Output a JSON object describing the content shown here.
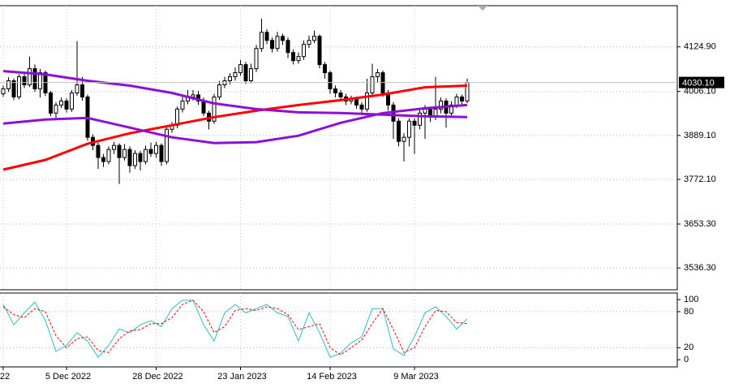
{
  "chart_data": [
    {
      "type": "candlestick",
      "categories": [
        "22",
        null,
        null,
        null,
        null,
        null,
        null,
        null,
        null,
        null,
        null,
        null,
        "5 Dec 2022",
        null,
        null,
        null,
        null,
        null,
        null,
        null,
        null,
        null,
        null,
        null,
        null,
        null,
        null,
        null,
        null,
        "28 Dec 2022",
        null,
        null,
        null,
        null,
        null,
        null,
        null,
        null,
        null,
        null,
        null,
        null,
        null,
        null,
        null,
        "23 Jan 2023",
        null,
        null,
        null,
        null,
        null,
        null,
        null,
        null,
        null,
        null,
        null,
        null,
        null,
        null,
        null,
        null,
        "14 Feb 2023",
        null,
        null,
        null,
        null,
        null,
        null,
        null,
        null,
        null,
        null,
        null,
        null,
        null,
        null,
        null,
        "9 Mar 2023",
        null,
        null,
        null,
        null,
        null,
        null,
        null,
        null,
        null,
        null
      ],
      "open": [
        4000,
        4013.1,
        4034.6,
        3991.6,
        4045.3,
        4023.8,
        4066.8,
        4013.1,
        4056.1,
        4002.3,
        3948.6,
        3970.1,
        3980.8,
        3959.3,
        4002.3,
        4023.8,
        3991.6,
        3884.1,
        3862.6,
        3830.3,
        3819.6,
        3851.8,
        3862.6,
        3830.3,
        3851.8,
        3808.8,
        3841.1,
        3819.6,
        3851.8,
        3841.1,
        3862.6,
        3819.6,
        3905.6,
        3916.3,
        3959.3,
        3980.8,
        3991.6,
        3997.0,
        3980.8,
        3948.6,
        3927.1,
        3991.6,
        4023.8,
        4034.6,
        4045.3,
        4056.1,
        4077.6,
        4034.6,
        4066.8,
        4120.6,
        4163.6,
        4142.1,
        4120.6,
        4152.9,
        4142.1,
        4109.8,
        4088.3,
        4099.1,
        4131.4,
        4142.1,
        4152.9,
        4077.6,
        4056.1,
        4013.1,
        4002.3,
        3991.6,
        3980.8,
        3985.2,
        3970.1,
        3959.3,
        4002.3,
        4045.3,
        4056.1,
        4002.3,
        3970.1,
        3927.1,
        3873.3,
        3884.1,
        3927.1,
        3916.3,
        3948.6,
        3959.3,
        3937.8,
        3959.3,
        3980.8,
        3948.6,
        3970.1,
        3991.6,
        3980.8
      ],
      "high": [
        4022,
        4044,
        4041,
        4052,
        4055,
        4099,
        4078,
        4066,
        4062,
        4008,
        3978,
        3990,
        3988,
        4010,
        4140,
        4045,
        3998,
        3892,
        3870,
        3840,
        3860,
        3872,
        3868,
        3866,
        3860,
        3850,
        3848,
        3862,
        3870,
        3872,
        3868,
        3912,
        3925,
        3966,
        3992,
        4010,
        4010,
        4008,
        3990,
        3955,
        4000,
        4034,
        4045,
        4055,
        4070,
        4090,
        4085,
        4080,
        4130,
        4200,
        4172,
        4150,
        4165,
        4160,
        4150,
        4118,
        4110,
        4142,
        4155,
        4168,
        4158,
        4085,
        4062,
        4022,
        4010,
        4000,
        3995,
        3992,
        3978,
        4040,
        4080,
        4066,
        4062,
        4010,
        3978,
        3935,
        3895,
        3935,
        3935,
        3960,
        3970,
        3966,
        4045,
        3990,
        3988,
        3980,
        4000,
        3998,
        4040
      ],
      "low": [
        3992,
        4005,
        3983,
        3985,
        4015,
        4018,
        4005,
        3990,
        3994,
        3940,
        3935,
        3962,
        3950,
        3952,
        3995,
        3982,
        3875,
        3850,
        3800,
        3805,
        3812,
        3840,
        3760,
        3822,
        3790,
        3800,
        3796,
        3812,
        3832,
        3830,
        3808,
        3812,
        3896,
        3908,
        3950,
        3972,
        3982,
        3970,
        3940,
        3905,
        3920,
        3984,
        4015,
        4025,
        4035,
        4048,
        4026,
        4028,
        4058,
        4112,
        4132,
        4110,
        4112,
        4130,
        4095,
        4078,
        4080,
        4090,
        4122,
        4135,
        4068,
        4040,
        4000,
        3990,
        3980,
        3970,
        3972,
        3960,
        3945,
        3952,
        3995,
        4030,
        3992,
        3955,
        3880,
        3860,
        3820,
        3860,
        3840,
        3905,
        3880,
        3925,
        3930,
        3948,
        3910,
        3940,
        3962,
        3970,
        3975
      ],
      "close": [
        4013.1,
        4034.6,
        3991.6,
        4045.3,
        4023.8,
        4066.8,
        4013.1,
        4056.1,
        4002.3,
        3948.6,
        3970.1,
        3980.8,
        3959.3,
        4002.3,
        4023.8,
        3991.6,
        3884.1,
        3862.6,
        3830.3,
        3819.6,
        3851.8,
        3862.6,
        3830.3,
        3851.8,
        3808.8,
        3841.1,
        3819.6,
        3851.8,
        3841.1,
        3862.6,
        3819.6,
        3905.6,
        3916.3,
        3959.3,
        3980.8,
        3991.6,
        3997.0,
        3980.8,
        3948.6,
        3927.1,
        3991.6,
        4023.8,
        4034.6,
        4045.3,
        4056.1,
        4077.6,
        4034.6,
        4066.8,
        4120.6,
        4163.6,
        4142.1,
        4120.6,
        4152.9,
        4142.1,
        4109.8,
        4088.3,
        4099.1,
        4131.4,
        4142.1,
        4152.9,
        4077.6,
        4056.1,
        4013.1,
        4002.3,
        3991.6,
        3980.8,
        3985.2,
        3970.1,
        3959.3,
        4002.3,
        4045.3,
        4056.1,
        4002.3,
        3970.1,
        3927.1,
        3873.3,
        3884.1,
        3927.1,
        3916.3,
        3948.6,
        3959.3,
        3937.8,
        3959.3,
        3980.8,
        3948.6,
        3970.1,
        3991.6,
        3980.8,
        4030.1
      ],
      "series": [
        {
          "color": "#ff0000",
          "x": [
            0,
            8,
            16,
            24,
            32,
            40,
            48,
            56,
            64,
            72,
            80,
            88
          ],
          "values": [
            3798.1,
            3823.9,
            3866.9,
            3894.9,
            3916.3,
            3937.8,
            3955.0,
            3970.1,
            3983.0,
            3998.0,
            4017.4,
            4021.7
          ]
        },
        {
          "color": "#8e0fd6",
          "x": [
            0,
            8,
            16,
            24,
            32,
            40,
            48,
            56,
            64,
            72,
            80,
            88
          ],
          "values": [
            4060.4,
            4051.8,
            4034.6,
            4021.7,
            4002.3,
            3974.4,
            3959.3,
            3950.7,
            3948.6,
            3944.3,
            3940.0,
            3937.8
          ]
        },
        {
          "color": "#8e0fd6",
          "x": [
            0,
            8,
            16,
            24,
            32,
            40,
            48,
            56,
            64,
            72,
            80,
            88
          ],
          "values": [
            3920.6,
            3931.4,
            3935.7,
            3909.9,
            3884.1,
            3869.0,
            3871.2,
            3888.4,
            3922.8,
            3948.6,
            3961.5,
            3970.1
          ]
        }
      ],
      "ylim": [
        3478.3,
        4234.5
      ],
      "yticks": [
        {
          "value": 4124.9,
          "label": "4124.90"
        },
        {
          "value": 4006.1,
          "label": "4006.10"
        },
        {
          "value": 3889.1,
          "label": "3889.10"
        },
        {
          "value": 3772.1,
          "label": "3772.10"
        },
        {
          "value": 3653.3,
          "label": "3653.30"
        },
        {
          "value": 3536.3,
          "label": "3536.30"
        }
      ],
      "last_price": {
        "value": 4030.1,
        "label": "4030.10"
      },
      "grid": true
    },
    {
      "type": "line",
      "series": [
        {
          "color": "#2fbfc0",
          "style": "solid",
          "x": [
            0,
            2,
            4,
            6,
            8,
            10,
            12,
            14,
            16,
            18,
            20,
            22,
            24,
            26,
            28,
            30,
            32,
            34,
            36,
            38,
            40,
            42,
            44,
            46,
            48,
            50,
            52,
            54,
            56,
            58,
            60,
            62,
            64,
            66,
            68,
            70,
            72,
            74,
            76,
            78,
            80,
            82,
            84,
            86,
            88
          ],
          "values": [
            92,
            58,
            78,
            96,
            65,
            14,
            24,
            45,
            31,
            4,
            24,
            51,
            45,
            58,
            65,
            55,
            85,
            99,
            99,
            58,
            31,
            78,
            92,
            78,
            85,
            92,
            78,
            72,
            31,
            78,
            45,
            4,
            11,
            28,
            38,
            85,
            85,
            18,
            7,
            38,
            78,
            88,
            72,
            51,
            68
          ]
        },
        {
          "color": "#ff0000",
          "style": "dashed",
          "x": [
            0,
            2,
            4,
            6,
            8,
            10,
            12,
            14,
            16,
            18,
            20,
            22,
            24,
            26,
            28,
            30,
            32,
            34,
            36,
            38,
            40,
            42,
            44,
            46,
            48,
            50,
            52,
            54,
            56,
            58,
            60,
            62,
            64,
            66,
            68,
            70,
            72,
            74,
            76,
            78,
            80,
            82,
            84,
            86,
            88
          ],
          "values": [
            88,
            75,
            70,
            85,
            80,
            40,
            20,
            35,
            38,
            15,
            12,
            35,
            48,
            50,
            60,
            60,
            70,
            92,
            99,
            80,
            45,
            55,
            82,
            85,
            82,
            88,
            85,
            75,
            50,
            55,
            60,
            20,
            8,
            20,
            33,
            60,
            85,
            50,
            12,
            20,
            55,
            82,
            80,
            62,
            60
          ]
        }
      ],
      "ylim": [
        -12,
        111
      ],
      "yticks": [
        100,
        80,
        20,
        0
      ],
      "grid": true
    }
  ]
}
